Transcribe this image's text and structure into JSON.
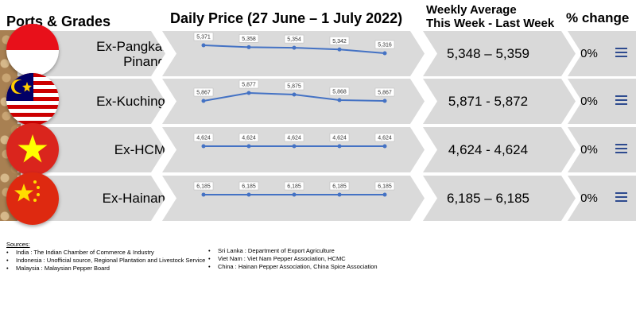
{
  "headers": {
    "ports": "Ports & Grades",
    "daily": "Daily Price (27 June – 1 July 2022)",
    "weekly_line1": "Weekly Average",
    "weekly_line2": "This Week - Last Week",
    "change": "% change"
  },
  "rows": [
    {
      "port_line1": "Ex-Pangkal",
      "port_line2": "Pinang",
      "flag": "indonesia-flag",
      "avg": "5,348 – 5,359",
      "pct": "0%"
    },
    {
      "port_line1": "Ex-Kuching",
      "port_line2": "",
      "flag": "malaysia-flag",
      "avg": "5,871 - 5,872",
      "pct": "0%"
    },
    {
      "port_line1": "Ex-HCM",
      "port_line2": "",
      "flag": "vietnam-flag",
      "avg": "4,624 - 4,624",
      "pct": "0%"
    },
    {
      "port_line1": "Ex-Hainan",
      "port_line2": "",
      "flag": "china-flag",
      "avg": "6,185 – 6,185",
      "pct": "0%"
    }
  ],
  "chart_data": [
    {
      "type": "line",
      "title": "",
      "series": [
        {
          "values": [
            5371,
            5358,
            5354,
            5342,
            5316
          ],
          "labels": [
            "5,371",
            "5,358",
            "5,354",
            "5,342",
            "5,316"
          ]
        }
      ]
    },
    {
      "type": "line",
      "title": "",
      "series": [
        {
          "values": [
            5867,
            5877,
            5875,
            5868,
            5867
          ],
          "labels": [
            "5,867",
            "5,877",
            "5,875",
            "5,868",
            "5,867"
          ]
        }
      ]
    },
    {
      "type": "line",
      "title": "",
      "series": [
        {
          "values": [
            4624,
            4624,
            4624,
            4624,
            4624
          ],
          "labels": [
            "4,624",
            "4,624",
            "4,624",
            "4,624",
            "4,624"
          ]
        }
      ]
    },
    {
      "type": "line",
      "title": "",
      "series": [
        {
          "values": [
            6185,
            6185,
            6185,
            6185,
            6185
          ],
          "labels": [
            "6,185",
            "6,185",
            "6,185",
            "6,185",
            "6,185"
          ]
        }
      ]
    }
  ],
  "colors": {
    "line": "#4472c4",
    "band": "#d9d9d9",
    "icon": "#2e4b8f"
  },
  "sources": {
    "title": "Sources:",
    "col1": [
      "India : The Indian Chamber of Commerce & Industry",
      "Indonesia : Unofficial  source, Regional Plantation and Livestock Service",
      "Malaysia : Malaysian Pepper Board"
    ],
    "col2": [
      "Sri Lanka : Department of Export Agriculture",
      "Viet Nam : Viet Nam Pepper Association, HCMC",
      "China : Hainan Pepper Association, China Spice Association"
    ]
  }
}
